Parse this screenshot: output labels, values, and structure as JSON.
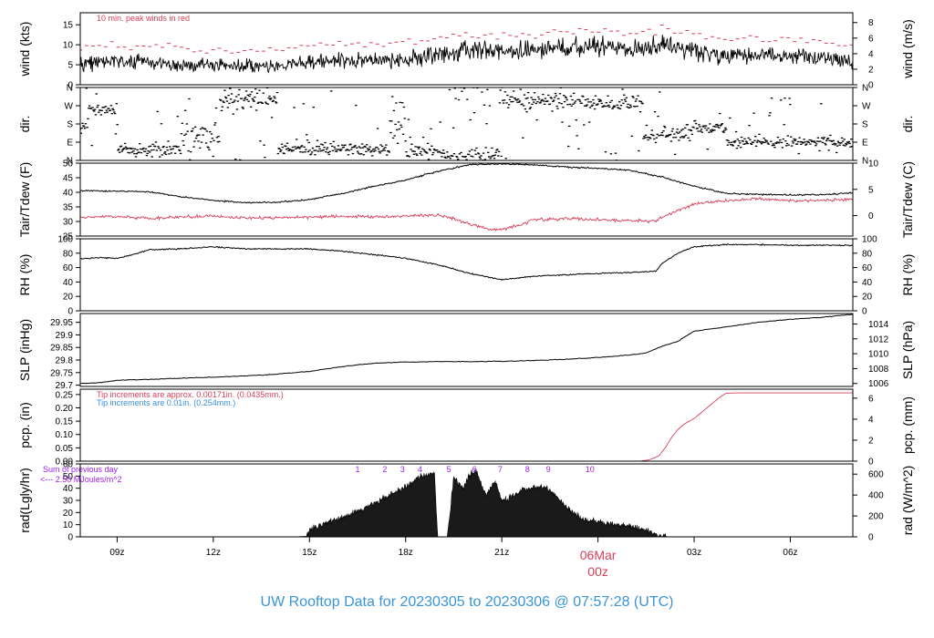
{
  "title": "UW Rooftop Data for 20230305  to  20230306 @ 07:57:28  (UTC)",
  "colors": {
    "axis": "#000000",
    "trace": "#000000",
    "red": "#d6405a",
    "blue": "#3a8fd6",
    "purple": "#a020f0",
    "title": "#3a95d8",
    "date": "#d6405a"
  },
  "time_axis": {
    "range": [
      7.85,
      31.95
    ],
    "ticks": [
      {
        "t": 9,
        "label": "09z"
      },
      {
        "t": 12,
        "label": "12z"
      },
      {
        "t": 15,
        "label": "15z"
      },
      {
        "t": 18,
        "label": "18z"
      },
      {
        "t": 21,
        "label": "21z"
      },
      {
        "t": 24,
        "label": "06Mar",
        "label2": "00z"
      },
      {
        "t": 27,
        "label": "03z"
      },
      {
        "t": 30,
        "label": "06z"
      }
    ]
  },
  "chart_data": [
    {
      "type": "line",
      "name": "wind",
      "ylabel": "wind (kts)",
      "ylabel_right": "wind (m/s)",
      "ylim": [
        0,
        18
      ],
      "yticks": [
        0,
        5,
        10,
        15
      ],
      "right_ylim": [
        0,
        9.26
      ],
      "right_yticks": [
        0,
        2,
        4,
        6,
        8
      ],
      "annotation": "10 min. peak winds in red",
      "profile_t": [
        7.85,
        9,
        10,
        11,
        12,
        13,
        14,
        15,
        16,
        17,
        18,
        19,
        20,
        21,
        22,
        23,
        24,
        25,
        25.8,
        26,
        27,
        28,
        29,
        30,
        31,
        31.95
      ],
      "profile_v": [
        5.5,
        6,
        5.3,
        5,
        4.8,
        4.6,
        4.5,
        5.8,
        6,
        6.1,
        6.3,
        7.6,
        8.4,
        8.4,
        8.6,
        9.2,
        9.5,
        8.8,
        9.2,
        10.5,
        8.2,
        7.5,
        7.8,
        7.2,
        7.0,
        5.5
      ],
      "peak_offset_kts": 4
    },
    {
      "type": "scatter",
      "name": "direction",
      "ylabel": "dir.",
      "ylabel_right": "dir.",
      "ylim": [
        0,
        360
      ],
      "yticks": [
        0,
        90,
        180,
        270,
        360
      ],
      "ytick_labels": [
        "N",
        "E",
        "S",
        "W",
        "N"
      ]
    },
    {
      "type": "line",
      "name": "temperature",
      "ylabel": "Tair/Tdew (F)",
      "ylabel_right": "Tair/Tdew (C)",
      "ylim": [
        25,
        50
      ],
      "yticks": [
        25,
        30,
        35,
        40,
        45,
        50
      ],
      "right_ylim": [
        -3.89,
        10
      ],
      "right_yticks": [
        0,
        5,
        10
      ],
      "series": [
        {
          "name": "Tair",
          "t": [
            7.85,
            9,
            10,
            11,
            12,
            13,
            14,
            15,
            16,
            17,
            18,
            19,
            20,
            21,
            22,
            23,
            24,
            25,
            26,
            27,
            28,
            29,
            30,
            31,
            31.95
          ],
          "v": [
            40.6,
            40.4,
            40.2,
            38.5,
            37.2,
            36.5,
            36.6,
            37.5,
            39.5,
            42.0,
            44.2,
            47.2,
            49.5,
            49.8,
            49.4,
            48.7,
            48.2,
            47.6,
            45.2,
            42.1,
            39.6,
            39.3,
            39.1,
            39.2,
            39.8
          ]
        },
        {
          "name": "Tdew",
          "t": [
            7.85,
            9,
            10,
            11,
            12,
            13,
            14,
            15,
            16,
            17,
            18,
            19,
            19.5,
            20,
            20.5,
            21,
            21.5,
            22,
            23,
            24,
            25,
            25.8,
            26,
            27,
            28,
            29,
            30,
            31,
            31.95
          ],
          "v": [
            31.5,
            31.7,
            31.0,
            31.6,
            31.8,
            31.2,
            31.3,
            31.5,
            31.8,
            31.5,
            31.8,
            32.3,
            31.0,
            29.0,
            27.5,
            27.3,
            28.5,
            30.5,
            31.0,
            30.6,
            30.4,
            30.2,
            31.5,
            36.0,
            37.2,
            37.8,
            37.2,
            37.3,
            37.6
          ]
        }
      ]
    },
    {
      "type": "line",
      "name": "relative_humidity",
      "ylabel": "RH (%)",
      "ylabel_right": "RH (%)",
      "ylim": [
        0,
        100
      ],
      "yticks": [
        0,
        20,
        40,
        60,
        80,
        100
      ],
      "series": [
        {
          "name": "RH",
          "t": [
            7.85,
            8.5,
            9,
            9.5,
            10,
            11,
            12,
            13,
            14,
            15,
            16,
            17,
            18,
            19,
            20,
            21,
            22,
            23,
            24,
            25,
            25.8,
            26,
            26.5,
            27,
            28,
            29,
            30,
            31,
            31.95
          ],
          "v": [
            72,
            74,
            73,
            78,
            85,
            86,
            89,
            86,
            86,
            86,
            83,
            78,
            73,
            64,
            52,
            43,
            48,
            50,
            52,
            53,
            55,
            66,
            80,
            89,
            92,
            92,
            91,
            91,
            91
          ]
        }
      ]
    },
    {
      "type": "line",
      "name": "pressure",
      "ylabel": "SLP (inHg)",
      "ylabel_right": "SLP (hPa)",
      "ylim": [
        29.695,
        29.985
      ],
      "yticks": [
        29.7,
        29.75,
        29.8,
        29.85,
        29.9,
        29.95
      ],
      "right_ylim": [
        1005.6,
        1015.4
      ],
      "right_yticks": [
        1006,
        1008,
        1010,
        1012,
        1014
      ],
      "series": [
        {
          "name": "SLP",
          "t": [
            7.85,
            8.5,
            9,
            10,
            11,
            12,
            13,
            14,
            15,
            16,
            17,
            18,
            19,
            20,
            21,
            22,
            23,
            24,
            25,
            25.5,
            26,
            26.5,
            27,
            28,
            29,
            30,
            31,
            31.95
          ],
          "v": [
            29.707,
            29.71,
            29.72,
            29.723,
            29.728,
            29.732,
            29.737,
            29.744,
            29.755,
            29.774,
            29.787,
            29.792,
            29.794,
            29.794,
            29.795,
            29.798,
            29.803,
            29.81,
            29.82,
            29.828,
            29.855,
            29.875,
            29.915,
            29.932,
            29.95,
            29.962,
            29.97,
            29.982
          ]
        }
      ]
    },
    {
      "type": "line",
      "name": "precipitation",
      "ylabel": "pcp. (in)",
      "ylabel_right": "pcp. (mm)",
      "ylim": [
        0,
        0.27
      ],
      "yticks": [
        0,
        0.05,
        0.1,
        0.15,
        0.2,
        0.25
      ],
      "ytick_labels": [
        "0.00",
        "0.05",
        "0.10",
        "0.15",
        "0.20",
        "0.25"
      ],
      "right_ylim": [
        0,
        6.858
      ],
      "right_yticks": [
        0,
        2,
        4,
        6
      ],
      "annotations": [
        {
          "text": "Tip increments are approx. 0.00171in. (0.0435mm.)",
          "color": "red"
        },
        {
          "text": "Tip increments are 0.01in. (0.254mm.)",
          "color": "blue"
        }
      ],
      "series": [
        {
          "name": "pcp",
          "t": [
            7.85,
            25.3,
            25.6,
            25.9,
            26.1,
            26.3,
            26.5,
            26.7,
            27.0,
            27.2,
            27.4,
            27.6,
            27.8,
            28.0,
            28.4,
            31.95
          ],
          "v": [
            0,
            0,
            0.005,
            0.02,
            0.05,
            0.09,
            0.12,
            0.14,
            0.16,
            0.18,
            0.2,
            0.22,
            0.24,
            0.255,
            0.256,
            0.256
          ]
        }
      ]
    },
    {
      "type": "area",
      "name": "radiation",
      "ylabel": "rad(Lgly/hr)",
      "ylabel_right": "rad (W/m^2)",
      "ylim": [
        0,
        60
      ],
      "yticks": [
        0,
        10,
        20,
        30,
        40,
        50,
        60
      ],
      "right_ylim": [
        0,
        697.8
      ],
      "right_yticks": [
        0,
        200,
        400,
        600
      ],
      "sum_label": "Sum of previous day",
      "sum_value": "<--- 2.50 MJoules/m^2",
      "hour_markers": [
        {
          "t": 16.5,
          "label": "1"
        },
        {
          "t": 17.35,
          "label": "2"
        },
        {
          "t": 17.9,
          "label": "3"
        },
        {
          "t": 18.45,
          "label": "4"
        },
        {
          "t": 19.35,
          "label": "5"
        },
        {
          "t": 20.15,
          "label": "6"
        },
        {
          "t": 20.95,
          "label": "7"
        },
        {
          "t": 21.8,
          "label": "8"
        },
        {
          "t": 22.45,
          "label": "9"
        },
        {
          "t": 23.75,
          "label": "10"
        }
      ],
      "series": [
        {
          "name": "radiation",
          "t": [
            7.85,
            14.55,
            14.9,
            15.0,
            15.5,
            16.0,
            16.5,
            17.0,
            17.5,
            18.0,
            18.5,
            18.9,
            19.0,
            19.3,
            19.5,
            19.8,
            20.0,
            20.2,
            20.5,
            20.8,
            21.0,
            21.3,
            21.6,
            22.0,
            22.3,
            22.6,
            22.9,
            23.2,
            23.5,
            24.0,
            24.5,
            25.0,
            25.5,
            26.0,
            26.2,
            31.95
          ],
          "v": [
            0,
            0,
            0.5,
            6,
            11,
            16,
            21,
            27,
            34,
            41,
            50,
            53,
            0,
            0,
            48,
            40,
            51,
            54,
            35,
            45,
            30,
            33,
            38,
            40,
            42,
            36,
            27,
            20,
            15,
            12,
            10,
            9,
            5,
            1,
            0,
            0
          ]
        }
      ]
    }
  ]
}
